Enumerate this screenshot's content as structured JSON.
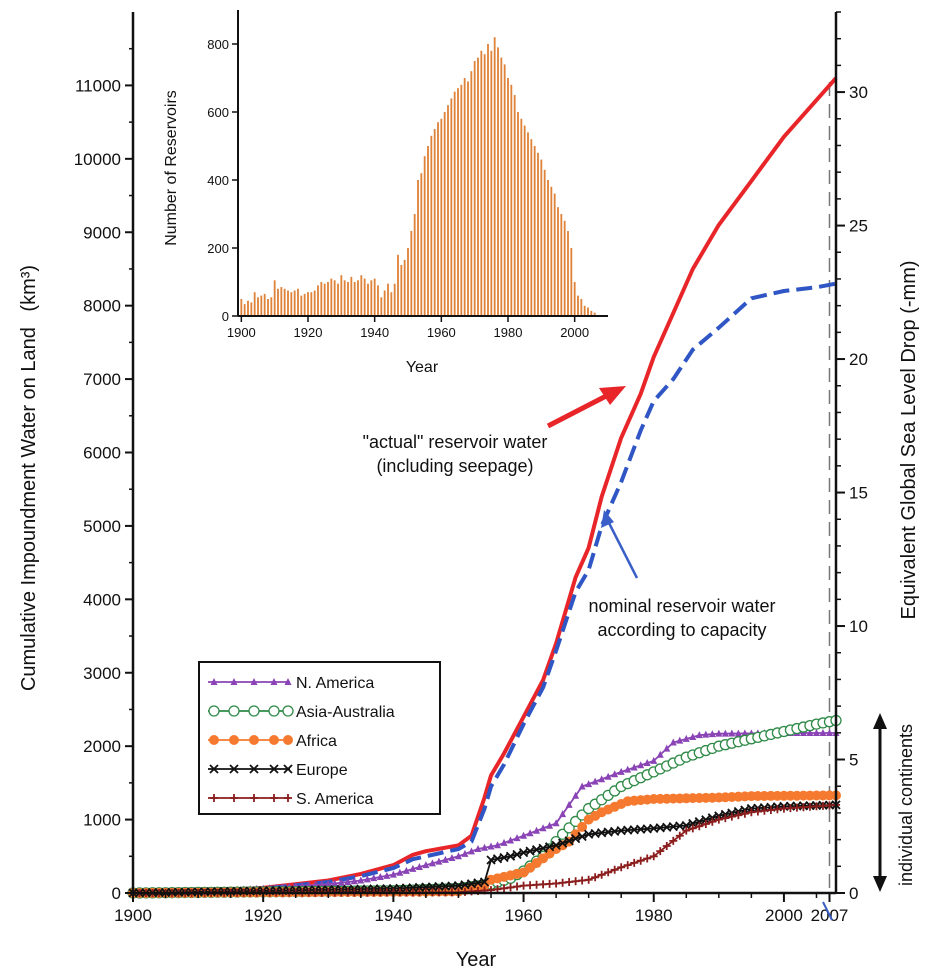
{
  "chart_data": [
    {
      "type": "line",
      "xlabel": "Year",
      "ylabel_left": "Cumulative Impoundment Water on Land",
      "ylabel_left_unit": "(km³)",
      "ylabel_right": "Equivalent Global Sea Level  Drop  (-mm)",
      "xlim": [
        1900,
        2008
      ],
      "ylim_left": [
        0,
        12000
      ],
      "ylim_right": [
        0,
        33
      ],
      "x_ticks": [
        "1900",
        "1920",
        "1940",
        "1960",
        "1980",
        "2000",
        "2007"
      ],
      "y_ticks_left": [
        "0",
        "1000",
        "2000",
        "3000",
        "4000",
        "5000",
        "6000",
        "7000",
        "8000",
        "9000",
        "10000",
        "11000"
      ],
      "y_ticks_right": [
        "0",
        "5",
        "10",
        "15",
        "20",
        "25",
        "30"
      ],
      "marker_year": 2007,
      "side_label": "individual continents",
      "annotations": [
        {
          "lines": [
            "\"actual\" reservoir water",
            "(including seepage)"
          ]
        },
        {
          "lines": [
            "nominal reservoir water",
            "according to capacity"
          ]
        }
      ],
      "series": [
        {
          "name": "actual",
          "color": "#e8262a",
          "style": "solid",
          "x": [
            1900,
            1910,
            1920,
            1930,
            1935,
            1940,
            1943,
            1945,
            1950,
            1952,
            1954,
            1955,
            1957,
            1960,
            1963,
            1965,
            1968,
            1970,
            1972,
            1975,
            1978,
            1980,
            1983,
            1986,
            1990,
            1995,
            2000,
            2005,
            2008
          ],
          "y": [
            0,
            20,
            70,
            170,
            260,
            380,
            520,
            570,
            650,
            780,
            1300,
            1600,
            1900,
            2400,
            2900,
            3400,
            4300,
            4700,
            5400,
            6200,
            6800,
            7300,
            7900,
            8500,
            9100,
            9700,
            10300,
            10800,
            11100
          ]
        },
        {
          "name": "nominal",
          "color": "#2f56c4",
          "style": "dashed",
          "x": [
            1900,
            1910,
            1920,
            1930,
            1935,
            1940,
            1943,
            1945,
            1950,
            1952,
            1954,
            1955,
            1957,
            1960,
            1963,
            1965,
            1968,
            1970,
            1972,
            1975,
            1978,
            1980,
            1983,
            1986,
            1990,
            1995,
            2000,
            2005,
            2008
          ],
          "y": [
            0,
            20,
            60,
            150,
            230,
            340,
            460,
            500,
            600,
            700,
            1150,
            1450,
            1750,
            2300,
            2800,
            3300,
            4100,
            4400,
            5000,
            5600,
            6300,
            6700,
            7000,
            7400,
            7700,
            8100,
            8200,
            8250,
            8300
          ]
        },
        {
          "name": "N. America",
          "color": "#8a44b5",
          "marker": "triangle",
          "x": [
            1900,
            1910,
            1920,
            1930,
            1935,
            1940,
            1945,
            1950,
            1953,
            1956,
            1960,
            1965,
            1969,
            1975,
            1980,
            1983,
            1987,
            1990,
            2000,
            2008
          ],
          "y": [
            0,
            20,
            60,
            120,
            170,
            250,
            380,
            500,
            600,
            650,
            780,
            950,
            1450,
            1650,
            1800,
            2050,
            2150,
            2170,
            2180,
            2180
          ]
        },
        {
          "name": "Asia-Australia",
          "color": "#2f8a47",
          "marker": "circle-open",
          "x": [
            1900,
            1940,
            1950,
            1955,
            1958,
            1960,
            1963,
            1966,
            1970,
            1975,
            1980,
            1985,
            1990,
            1995,
            2000,
            2005,
            2008
          ],
          "y": [
            0,
            30,
            60,
            120,
            200,
            300,
            500,
            800,
            1150,
            1450,
            1650,
            1850,
            2000,
            2100,
            2200,
            2300,
            2350
          ]
        },
        {
          "name": "Africa",
          "color": "#f57a2f",
          "marker": "circle-filled",
          "x": [
            1900,
            1950,
            1954,
            1955,
            1960,
            1965,
            1967,
            1970,
            1972,
            1976,
            1980,
            1990,
            1995,
            2008
          ],
          "y": [
            0,
            20,
            100,
            180,
            280,
            600,
            700,
            1000,
            1100,
            1250,
            1280,
            1300,
            1320,
            1330
          ]
        },
        {
          "name": "Europe",
          "color": "#111111",
          "marker": "x",
          "x": [
            1900,
            1940,
            1950,
            1954,
            1955,
            1958,
            1960,
            1965,
            1970,
            1975,
            1980,
            1985,
            1990,
            1995,
            2000,
            2008
          ],
          "y": [
            0,
            60,
            100,
            150,
            450,
            500,
            550,
            650,
            800,
            850,
            880,
            920,
            1050,
            1150,
            1180,
            1200
          ]
        },
        {
          "name": "S. America",
          "color": "#8b1d1d",
          "marker": "plus",
          "x": [
            1900,
            1950,
            1955,
            1960,
            1965,
            1970,
            1975,
            1980,
            1985,
            1990,
            1995,
            2000,
            2008
          ],
          "y": [
            0,
            10,
            40,
            100,
            130,
            180,
            350,
            500,
            850,
            1000,
            1100,
            1150,
            1200
          ]
        }
      ]
    },
    {
      "type": "bar",
      "xlabel": "Year",
      "ylabel": "Number of Reservoirs",
      "xlim": [
        1899,
        2010
      ],
      "ylim": [
        0,
        900
      ],
      "x_ticks": [
        "1900",
        "1920",
        "1940",
        "1960",
        "1980",
        "2000"
      ],
      "y_ticks": [
        "0",
        "200",
        "400",
        "600",
        "800"
      ],
      "color": "#e0833a",
      "x": [
        1900,
        1901,
        1902,
        1903,
        1904,
        1905,
        1906,
        1907,
        1908,
        1909,
        1910,
        1911,
        1912,
        1913,
        1914,
        1915,
        1916,
        1917,
        1918,
        1919,
        1920,
        1921,
        1922,
        1923,
        1924,
        1925,
        1926,
        1927,
        1928,
        1929,
        1930,
        1931,
        1932,
        1933,
        1934,
        1935,
        1936,
        1937,
        1938,
        1939,
        1940,
        1941,
        1942,
        1943,
        1944,
        1945,
        1946,
        1947,
        1948,
        1949,
        1950,
        1951,
        1952,
        1953,
        1954,
        1955,
        1956,
        1957,
        1958,
        1959,
        1960,
        1961,
        1962,
        1963,
        1964,
        1965,
        1966,
        1967,
        1968,
        1969,
        1970,
        1971,
        1972,
        1973,
        1974,
        1975,
        1976,
        1977,
        1978,
        1979,
        1980,
        1981,
        1982,
        1983,
        1984,
        1985,
        1986,
        1987,
        1988,
        1989,
        1990,
        1991,
        1992,
        1993,
        1994,
        1995,
        1996,
        1997,
        1998,
        1999,
        2000,
        2001,
        2002,
        2003,
        2004,
        2005,
        2006
      ],
      "values": [
        50,
        35,
        45,
        40,
        70,
        55,
        60,
        65,
        50,
        55,
        105,
        80,
        85,
        80,
        75,
        70,
        75,
        80,
        60,
        65,
        70,
        70,
        75,
        90,
        100,
        95,
        100,
        110,
        105,
        95,
        120,
        105,
        100,
        115,
        100,
        105,
        120,
        110,
        95,
        105,
        110,
        90,
        55,
        75,
        95,
        70,
        95,
        180,
        150,
        165,
        200,
        250,
        300,
        400,
        420,
        470,
        500,
        530,
        550,
        570,
        580,
        600,
        620,
        640,
        660,
        670,
        680,
        700,
        690,
        720,
        750,
        760,
        780,
        770,
        800,
        780,
        820,
        790,
        760,
        740,
        700,
        680,
        650,
        600,
        580,
        560,
        540,
        520,
        500,
        480,
        460,
        430,
        400,
        380,
        360,
        320,
        300,
        280,
        250,
        200,
        100,
        60,
        50,
        30,
        25,
        15,
        10
      ]
    }
  ]
}
